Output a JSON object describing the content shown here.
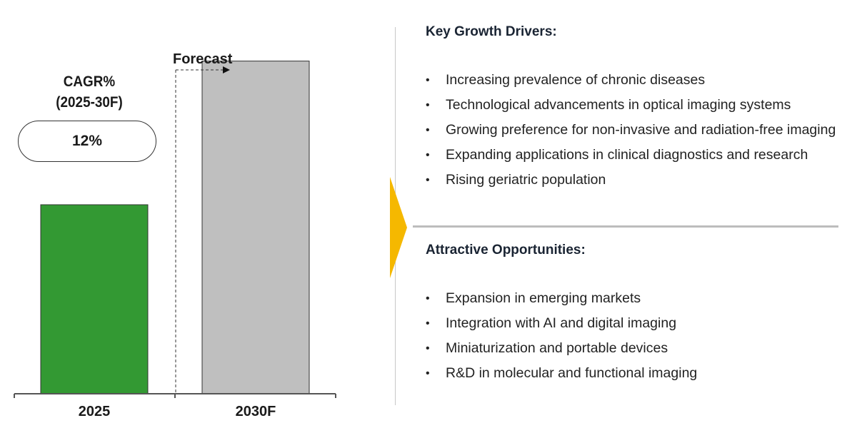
{
  "chart_data": {
    "type": "bar",
    "categories": [
      "2025",
      "2030F"
    ],
    "values": [
      100,
      176
    ],
    "colors": [
      "#339933",
      "#bfbfbf"
    ],
    "forecast_label": "Forecast",
    "cagr": {
      "label_line1": "CAGR%",
      "label_line2": "(2025-30F)",
      "value": "12%"
    }
  },
  "drivers": {
    "title": "Key Growth Drivers:",
    "items": [
      "Increasing prevalence of chronic diseases",
      "Technological advancements in optical imaging systems",
      "Growing preference for non-invasive and radiation-free imaging",
      "Expanding applications in clinical diagnostics and research",
      "Rising geriatric population"
    ]
  },
  "opportunities": {
    "title": "Attractive Opportunities:",
    "items": [
      "Expansion in emerging markets",
      "Integration with AI and digital imaging",
      "Miniaturization and portable devices",
      "R&D in molecular and functional imaging"
    ]
  },
  "accent_color": "#f5b800",
  "bullet_glyph": "•"
}
